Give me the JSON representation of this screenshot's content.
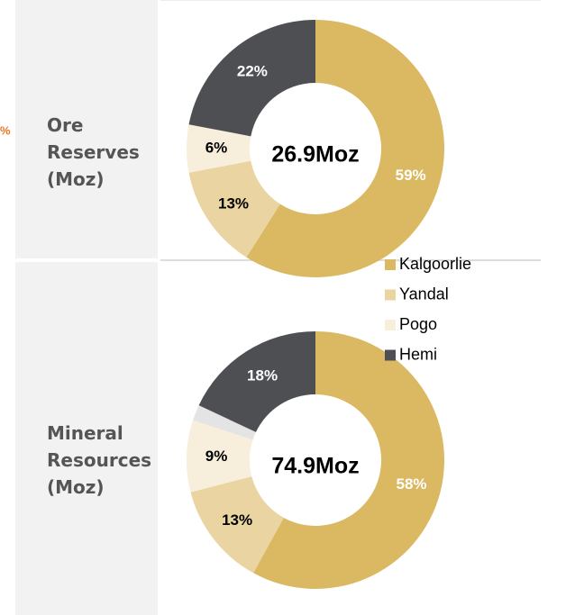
{
  "annotation": "%",
  "legend": [
    {
      "name": "Kalgoorlie",
      "color": "#dbb862",
      "label_color": "#ffffff"
    },
    {
      "name": "Yandal",
      "color": "#e9d4a2",
      "label_color": "#000000"
    },
    {
      "name": "Pogo",
      "color": "#f7efdc",
      "label_color": "#000000"
    },
    {
      "name": "Hemi",
      "color": "#4d4f52",
      "label_color": "#ffffff"
    }
  ],
  "chart_data": [
    {
      "type": "pie",
      "title": "Ore Reserves (Moz)",
      "center_label": "26.9Moz",
      "values": [
        59,
        13,
        6,
        22
      ],
      "value_labels": [
        "59%",
        "13%",
        "6%",
        "22%"
      ],
      "colors": [
        "#dbb862",
        "#e9d4a2",
        "#f7efdc",
        "#4d4f52"
      ]
    },
    {
      "type": "pie",
      "title": "Mineral Resources (Moz)",
      "center_label": "74.9Moz",
      "values": [
        58,
        13,
        9,
        2,
        18
      ],
      "value_labels": [
        "58%",
        "13%",
        "9%",
        null,
        "18%"
      ],
      "colors": [
        "#dbb862",
        "#e9d4a2",
        "#f7efdc",
        "#e4e4e4",
        "#4d4f52"
      ]
    }
  ]
}
